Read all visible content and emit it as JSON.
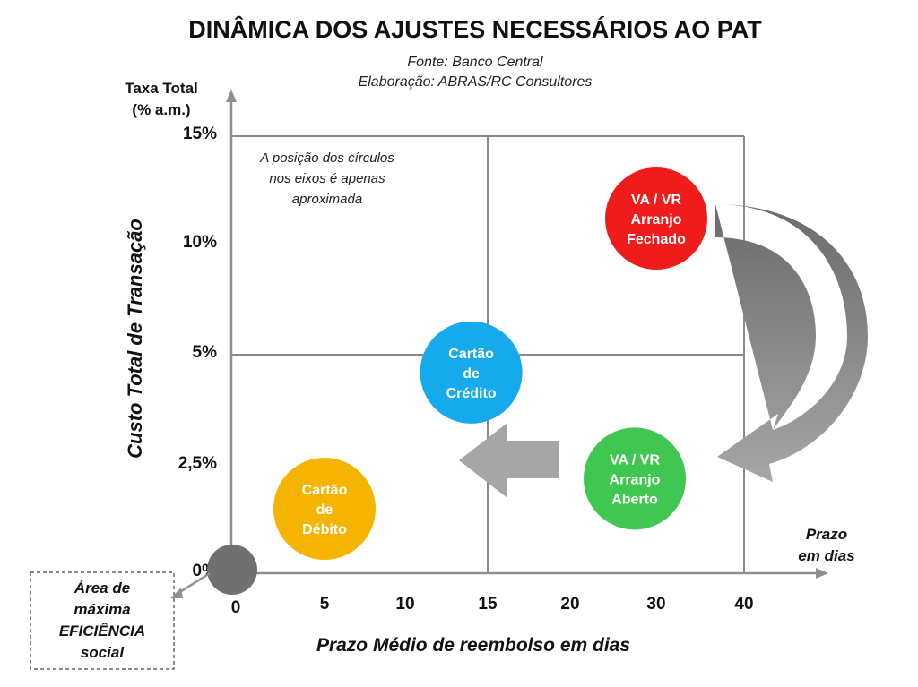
{
  "chart_data": {
    "type": "scatter",
    "title": "DINÂMICA DOS AJUSTES NECESSÁRIOS AO PAT",
    "source_lines": [
      "Fonte: Banco Central",
      "Elaboração: ABRAS/RC Consultores"
    ],
    "y_axis_title_lines": [
      "Taxa Total",
      "(% a.m.)"
    ],
    "ylabel": "Custo Total de Transação",
    "x_axis_end_lines": [
      "Prazo",
      "em dias"
    ],
    "xlabel": "Prazo Médio de reembolso em dias",
    "x_ticks": [
      "0",
      "5",
      "10",
      "15",
      "20",
      "30",
      "40"
    ],
    "y_ticks": [
      "0%",
      "2,5%",
      "5%",
      "10%",
      "15%"
    ],
    "note_lines": [
      "A posição dos círculos",
      "nos eixos é apenas",
      "aproximada"
    ],
    "bubbles": [
      {
        "label_lines": [
          "Cartão",
          "de",
          "Débito"
        ],
        "x": 5,
        "y": 1.5,
        "color": "#F5B400"
      },
      {
        "label_lines": [
          "Cartão",
          "de",
          "Crédito"
        ],
        "x": 14,
        "y": 4.6,
        "color": "#16A9EC"
      },
      {
        "label_lines": [
          "VA / VR",
          "Arranjo",
          "Aberto"
        ],
        "x": 27.5,
        "y": 2.2,
        "color": "#3FC751"
      },
      {
        "label_lines": [
          "VA / VR",
          "Arranjo",
          "Fechado"
        ],
        "x": 30,
        "y": 11.2,
        "color": "#F01B1B"
      }
    ],
    "origin_marker": {
      "x": 0,
      "y": 0,
      "color": "#707070"
    },
    "efficiency_box_lines": [
      "Área de",
      "máxima",
      "EFICIÊNCIA",
      "social"
    ],
    "grid": true,
    "colors": {
      "arrow_dark": "#6b6b6b",
      "arrow_light": "#a6a6a6",
      "grid": "#8a8a8a",
      "axis": "#8f8f8f"
    }
  }
}
